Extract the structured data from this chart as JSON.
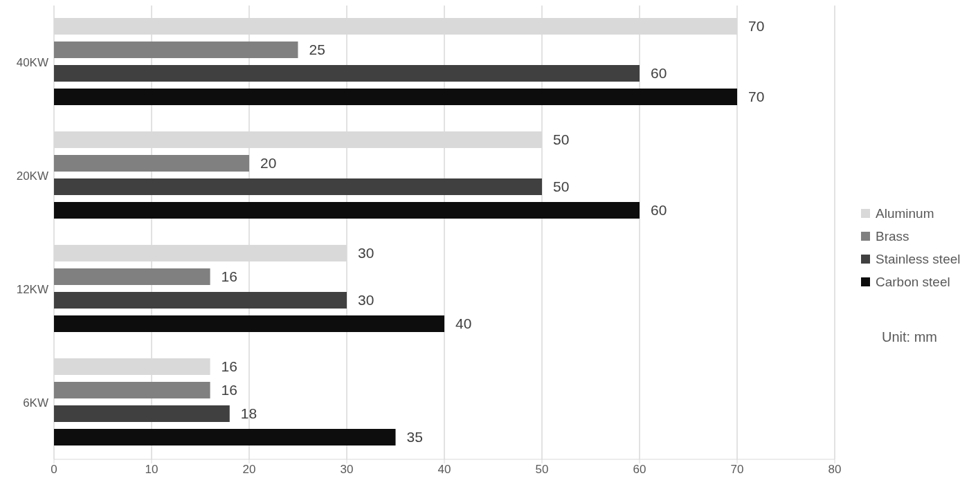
{
  "chart_data": {
    "type": "bar",
    "orientation": "horizontal",
    "categories": [
      "40KW",
      "20KW",
      "12KW",
      "6KW"
    ],
    "series": [
      {
        "name": "Aluminum",
        "color": "#d9d9d9",
        "values": [
          70,
          50,
          30,
          16
        ]
      },
      {
        "name": "Brass",
        "color": "#808080",
        "values": [
          25,
          20,
          16,
          16
        ]
      },
      {
        "name": "Stainless steel",
        "color": "#404040",
        "values": [
          60,
          50,
          30,
          18
        ]
      },
      {
        "name": "Carbon steel",
        "color": "#0d0d0d",
        "values": [
          70,
          60,
          40,
          35
        ]
      }
    ],
    "xlim": [
      0,
      80
    ],
    "xticks": [
      0,
      10,
      20,
      30,
      40,
      50,
      60,
      70,
      80
    ],
    "grid": "x",
    "legend": "right",
    "data_labels": true,
    "annotations": [
      "Unit: mm"
    ]
  }
}
